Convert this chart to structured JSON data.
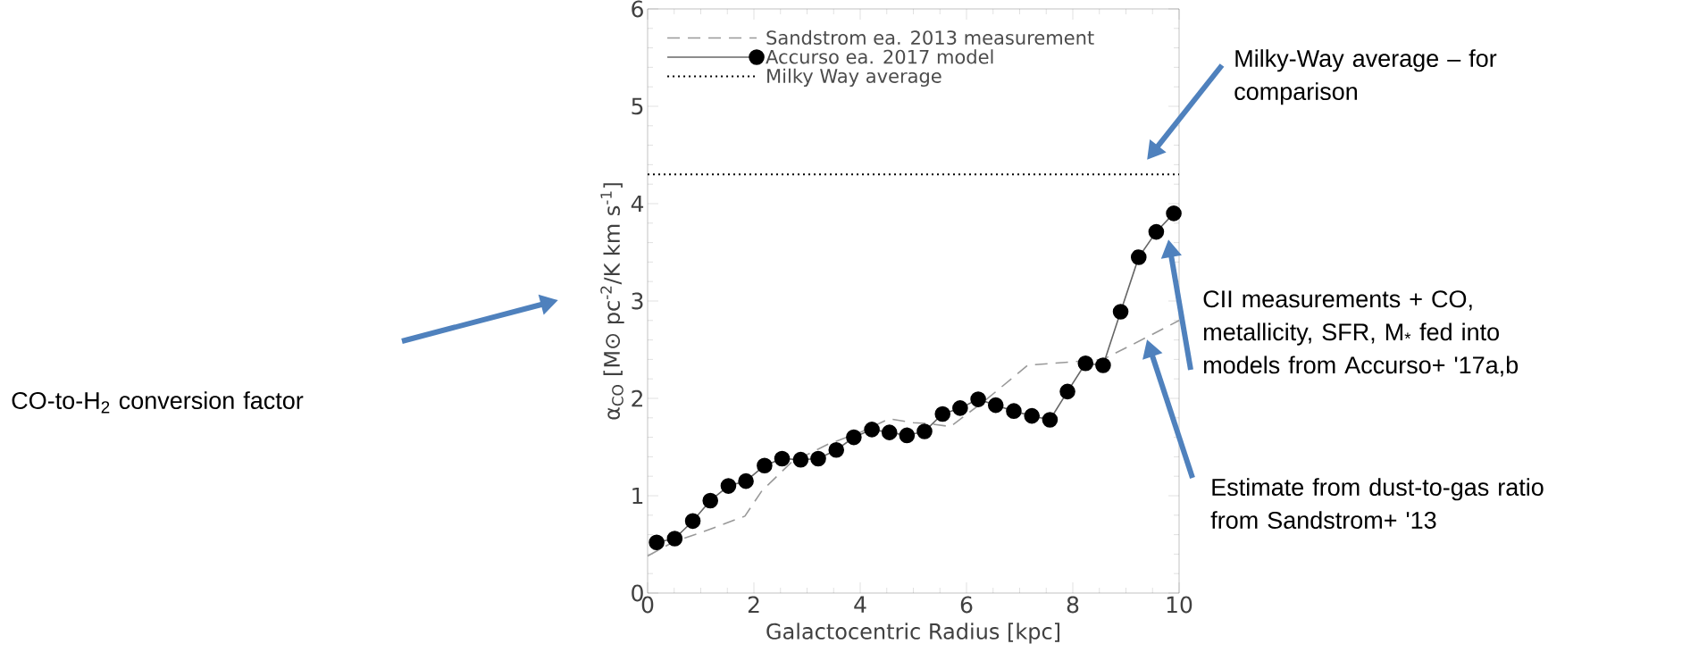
{
  "chart_data": {
    "type": "line",
    "xlabel": "Galactocentric Radius [kpc]",
    "ylabel": "α$_{CO}$ [M⊙ pc$^{-2}$/K km s$^{-1}$]",
    "xlim": [
      0,
      10
    ],
    "ylim": [
      0,
      6
    ],
    "xticks": [
      0,
      2,
      4,
      6,
      8,
      10
    ],
    "yticks": [
      0,
      1,
      2,
      3,
      4,
      5,
      6
    ],
    "legend": "top left",
    "grid": false,
    "series": [
      {
        "name": "Sandstrom ea. 2013 measurement",
        "color": "#999999",
        "line_style": "dashed",
        "marker": "none",
        "x": [
          0,
          0.5,
          1.0,
          1.83,
          2.15,
          2.7,
          3.4,
          4.0,
          4.54,
          5.0,
          5.3,
          5.7,
          6.4,
          7.15,
          8.57,
          9.4,
          10
        ],
        "values": [
          0.38,
          0.53,
          0.62,
          0.79,
          1.05,
          1.34,
          1.53,
          1.65,
          1.79,
          1.75,
          1.74,
          1.71,
          2.0,
          2.34,
          2.4,
          2.63,
          2.8
        ]
      },
      {
        "name": "Accurso ea. 2017 model",
        "color": "#000000",
        "line_style": "solid",
        "marker": "circle",
        "x": [
          0.17,
          0.51,
          0.85,
          1.18,
          1.52,
          1.85,
          2.2,
          2.53,
          2.88,
          3.21,
          3.55,
          3.88,
          4.22,
          4.55,
          4.88,
          5.21,
          5.55,
          5.88,
          6.22,
          6.55,
          6.89,
          7.23,
          7.57,
          7.9,
          8.24,
          8.57,
          8.9,
          9.24,
          9.57,
          9.9
        ],
        "values": [
          0.52,
          0.56,
          0.74,
          0.95,
          1.1,
          1.15,
          1.31,
          1.38,
          1.37,
          1.38,
          1.47,
          1.6,
          1.68,
          1.65,
          1.62,
          1.66,
          1.84,
          1.9,
          1.99,
          1.93,
          1.87,
          1.82,
          1.78,
          2.07,
          2.36,
          2.34,
          2.89,
          3.45,
          3.71,
          3.9
        ]
      }
    ],
    "ref_lines": [
      {
        "axis": "y",
        "value": 4.3,
        "label": "Milky Way average",
        "color": "#000000",
        "line_style": "dotted"
      }
    ],
    "annotations": [
      "CO-to-H$_{2}$ conversion factor",
      "Milky-Way average – for comparison",
      "CII measurements + CO, metallicity, SFR, M$_{*}$ fed into models from Accurso+ '17a,b",
      "Estimate from dust-to-gas ratio from Sandstrom+ '13"
    ]
  }
}
